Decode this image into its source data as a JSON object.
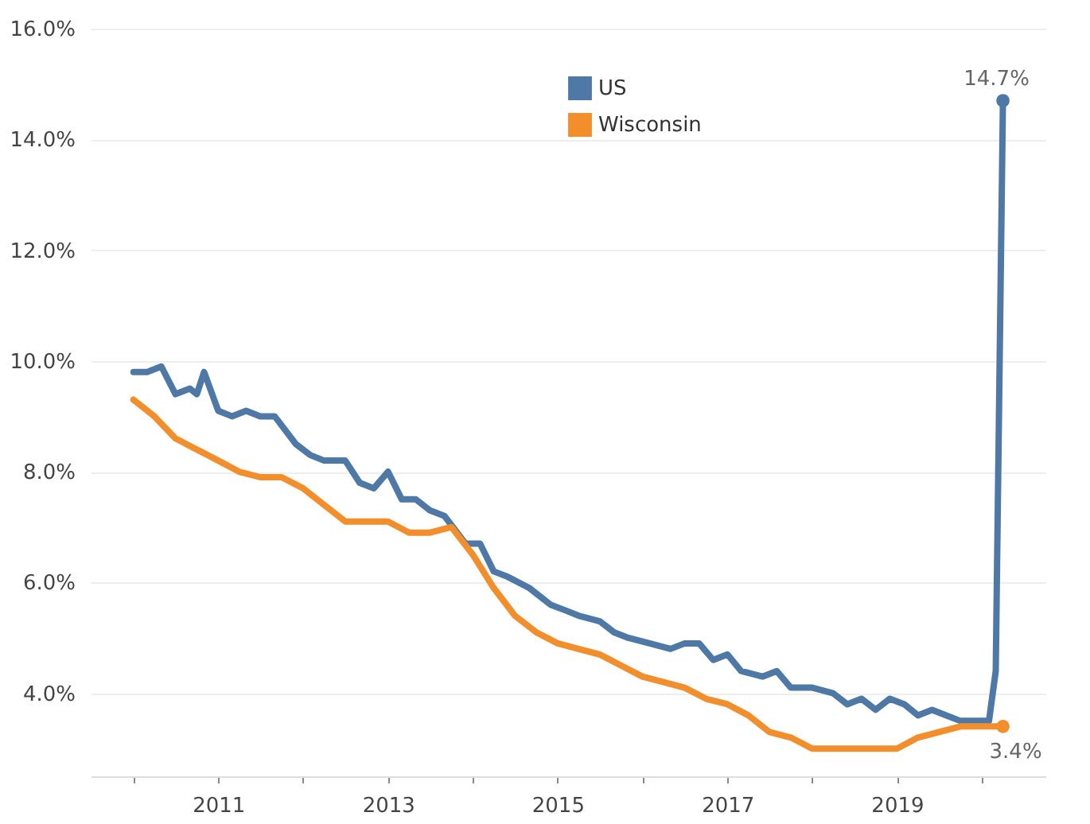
{
  "chart_data": {
    "type": "line",
    "series": [
      {
        "name": "US",
        "color": "#4e79a7",
        "x": [
          "2010-01",
          "2010-03",
          "2010-05",
          "2010-07",
          "2010-09",
          "2010-10",
          "2010-11",
          "2011-01",
          "2011-03",
          "2011-05",
          "2011-07",
          "2011-09",
          "2011-12",
          "2012-02",
          "2012-04",
          "2012-07",
          "2012-09",
          "2012-11",
          "2013-01",
          "2013-03",
          "2013-05",
          "2013-07",
          "2013-09",
          "2013-12",
          "2014-02",
          "2014-04",
          "2014-06",
          "2014-09",
          "2014-12",
          "2015-02",
          "2015-04",
          "2015-07",
          "2015-09",
          "2015-11",
          "2016-02",
          "2016-05",
          "2016-07",
          "2016-09",
          "2016-11",
          "2017-01",
          "2017-03",
          "2017-06",
          "2017-08",
          "2017-10",
          "2018-01",
          "2018-04",
          "2018-06",
          "2018-08",
          "2018-10",
          "2018-12",
          "2019-02",
          "2019-04",
          "2019-06",
          "2019-08",
          "2019-10",
          "2019-12",
          "2020-02",
          "2020-03",
          "2020-04"
        ],
        "values": [
          9.8,
          9.8,
          9.9,
          9.4,
          9.5,
          9.4,
          9.8,
          9.1,
          9.0,
          9.1,
          9.0,
          9.0,
          8.5,
          8.3,
          8.2,
          8.2,
          7.8,
          7.7,
          8.0,
          7.5,
          7.5,
          7.3,
          7.2,
          6.7,
          6.7,
          6.2,
          6.1,
          5.9,
          5.6,
          5.5,
          5.4,
          5.3,
          5.1,
          5.0,
          4.9,
          4.8,
          4.9,
          4.9,
          4.6,
          4.7,
          4.4,
          4.3,
          4.4,
          4.1,
          4.1,
          4.0,
          3.8,
          3.9,
          3.7,
          3.9,
          3.8,
          3.6,
          3.7,
          3.6,
          3.5,
          3.5,
          3.5,
          4.4,
          14.7
        ],
        "value_labels": [
          null,
          null,
          null,
          null,
          null,
          null,
          null,
          null,
          null,
          null,
          null,
          null,
          null,
          null,
          null,
          null,
          null,
          null,
          null,
          null,
          null,
          null,
          null,
          null,
          null,
          null,
          null,
          null,
          null,
          null,
          null,
          null,
          null,
          null,
          null,
          null,
          null,
          null,
          null,
          null,
          null,
          null,
          null,
          null,
          null,
          null,
          null,
          null,
          null,
          null,
          null,
          null,
          null,
          null,
          null,
          null,
          null,
          null,
          "14.7%"
        ]
      },
      {
        "name": "Wisconsin",
        "color": "#f28e2b",
        "x": [
          "2010-01",
          "2010-04",
          "2010-07",
          "2010-10",
          "2011-01",
          "2011-04",
          "2011-07",
          "2011-10",
          "2012-01",
          "2012-04",
          "2012-07",
          "2012-10",
          "2013-01",
          "2013-04",
          "2013-07",
          "2013-10",
          "2014-01",
          "2014-04",
          "2014-07",
          "2014-10",
          "2015-01",
          "2015-04",
          "2015-07",
          "2015-10",
          "2016-01",
          "2016-04",
          "2016-07",
          "2016-10",
          "2017-01",
          "2017-04",
          "2017-07",
          "2017-10",
          "2018-01",
          "2018-04",
          "2018-07",
          "2018-10",
          "2019-01",
          "2019-04",
          "2019-07",
          "2019-10",
          "2020-01",
          "2020-04"
        ],
        "values": [
          9.3,
          9.0,
          8.6,
          8.4,
          8.2,
          8.0,
          7.9,
          7.9,
          7.7,
          7.4,
          7.1,
          7.1,
          7.1,
          6.9,
          6.9,
          7.0,
          6.5,
          5.9,
          5.4,
          5.1,
          4.9,
          4.8,
          4.7,
          4.5,
          4.3,
          4.2,
          4.1,
          3.9,
          3.8,
          3.6,
          3.3,
          3.2,
          3.0,
          3.0,
          3.0,
          3.0,
          3.0,
          3.2,
          3.3,
          3.4,
          3.4,
          3.4
        ],
        "value_labels": [
          null,
          null,
          null,
          null,
          null,
          null,
          null,
          null,
          null,
          null,
          null,
          null,
          null,
          null,
          null,
          null,
          null,
          null,
          null,
          null,
          null,
          null,
          null,
          null,
          null,
          null,
          null,
          null,
          null,
          null,
          null,
          null,
          null,
          null,
          null,
          null,
          null,
          null,
          null,
          null,
          null,
          "3.4%"
        ]
      }
    ],
    "xlim": [
      "2009-07",
      "2020-10"
    ],
    "xticks": [
      {
        "value": "2010",
        "label": null
      },
      {
        "value": "2011",
        "label": "2011"
      },
      {
        "value": "2012",
        "label": null
      },
      {
        "value": "2013",
        "label": "2013"
      },
      {
        "value": "2014",
        "label": null
      },
      {
        "value": "2015",
        "label": "2015"
      },
      {
        "value": "2016",
        "label": null
      },
      {
        "value": "2017",
        "label": "2017"
      },
      {
        "value": "2018",
        "label": null
      },
      {
        "value": "2019",
        "label": "2019"
      },
      {
        "value": "2020",
        "label": null
      }
    ],
    "ylim": [
      2.5,
      16
    ],
    "yticks": [
      {
        "value": 4,
        "label": "4.0%"
      },
      {
        "value": 6,
        "label": "6.0%"
      },
      {
        "value": 8,
        "label": "8.0%"
      },
      {
        "value": 10,
        "label": "10.0%"
      },
      {
        "value": 12,
        "label": "12.0%"
      },
      {
        "value": 14,
        "label": "14.0%"
      },
      {
        "value": 16,
        "label": "16.0%"
      }
    ],
    "grid": "y",
    "legend": "top",
    "marker": "none",
    "line_style": "solid"
  }
}
